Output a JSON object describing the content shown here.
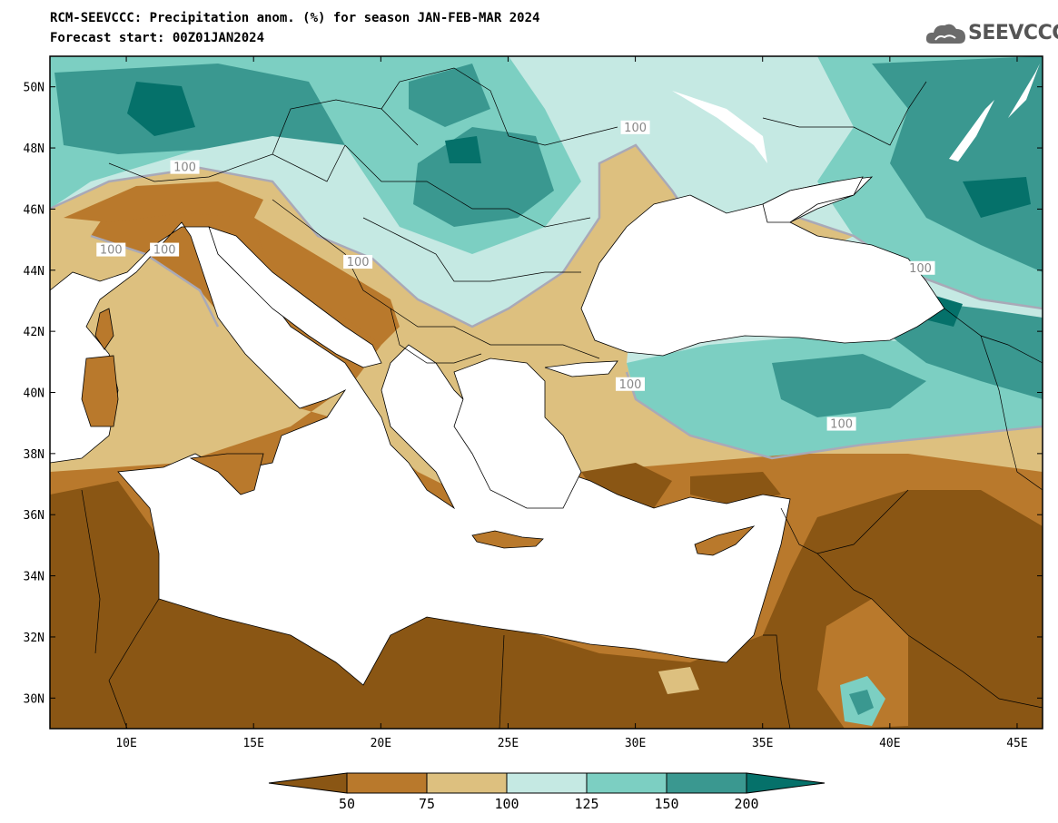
{
  "header": {
    "title": "RCM-SEEVCCC: Precipitation anom. (%) for season JAN-FEB-MAR 2024",
    "subtitle": "Forecast start: 00Z01JAN2024"
  },
  "logo": {
    "text": "SEEVCCC",
    "icon": "cloud-logo-icon",
    "color": "#555555"
  },
  "map": {
    "lon_range": [
      7,
      46
    ],
    "lat_range": [
      29,
      51
    ],
    "x_ticks": [
      {
        "value": 10,
        "label": "10E"
      },
      {
        "value": 15,
        "label": "15E"
      },
      {
        "value": 20,
        "label": "20E"
      },
      {
        "value": 25,
        "label": "25E"
      },
      {
        "value": 30,
        "label": "30E"
      },
      {
        "value": 35,
        "label": "35E"
      },
      {
        "value": 40,
        "label": "40E"
      },
      {
        "value": 45,
        "label": "45E"
      }
    ],
    "y_ticks": [
      {
        "value": 30,
        "label": "30N"
      },
      {
        "value": 32,
        "label": "32N"
      },
      {
        "value": 34,
        "label": "34N"
      },
      {
        "value": 36,
        "label": "36N"
      },
      {
        "value": 38,
        "label": "38N"
      },
      {
        "value": 40,
        "label": "40N"
      },
      {
        "value": 42,
        "label": "42N"
      },
      {
        "value": 44,
        "label": "44N"
      },
      {
        "value": 46,
        "label": "46N"
      },
      {
        "value": 48,
        "label": "48N"
      },
      {
        "value": 50,
        "label": "50N"
      }
    ],
    "contour_labels": [
      {
        "text": "100",
        "lon": 12.3,
        "lat": 47.3
      },
      {
        "text": "100",
        "lon": 9.4,
        "lat": 44.6
      },
      {
        "text": "100",
        "lon": 11.5,
        "lat": 44.6
      },
      {
        "text": "100",
        "lon": 19.1,
        "lat": 44.2
      },
      {
        "text": "100",
        "lon": 30.0,
        "lat": 48.6
      },
      {
        "text": "100",
        "lon": 41.2,
        "lat": 44.0
      },
      {
        "text": "100",
        "lon": 29.8,
        "lat": 40.2
      },
      {
        "text": "100",
        "lon": 38.1,
        "lat": 38.9
      }
    ]
  },
  "colorbar": {
    "levels": [
      "50",
      "75",
      "100",
      "125",
      "150",
      "200"
    ],
    "colors": [
      "#8a5614",
      "#b9792c",
      "#ddc07f",
      "#c5e9e3",
      "#7ccfc2",
      "#3a9890",
      "#05716a"
    ]
  },
  "palette": {
    "very_dry": "#8a5614",
    "dry": "#b9792c",
    "slightly_dry": "#ddc07f",
    "slightly_wet": "#c5e9e3",
    "wet": "#7ccfc2",
    "very_wet": "#3a9890",
    "extreme_wet": "#05716a",
    "contour_100": "#a9a9b7"
  }
}
